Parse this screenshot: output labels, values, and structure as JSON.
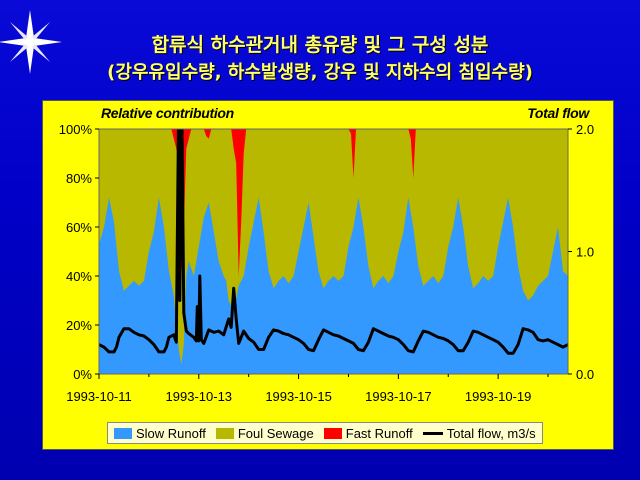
{
  "title_line1": "합류식 하수관거내 총유량 및 그 구성 성분",
  "title_line2": "(강우유입수량, 하수발생량, 강우 및 지하수의 침입수량)",
  "chart_data": {
    "type": "area",
    "left_axis_title": "Relative contribution",
    "right_axis_title": "Total flow",
    "y_left_ticks": [
      "0%",
      "20%",
      "40%",
      "60%",
      "80%",
      "100%"
    ],
    "y_left_range": [
      0,
      100
    ],
    "y_right_ticks": [
      "0.0",
      "1.0",
      "2.0"
    ],
    "y_right_range": [
      0,
      2.0
    ],
    "x_range_days": [
      0,
      9.4
    ],
    "x_start": "1993-10-11",
    "x_tick_labels": [
      "1993-10-11",
      "1993-10-13",
      "1993-10-15",
      "1993-10-17",
      "1993-10-19"
    ],
    "x_tick_days": [
      0,
      2,
      4,
      6,
      8
    ],
    "series": [
      {
        "name": "Slow Runoff",
        "color": "#3399ff",
        "kind": "stacked-area"
      },
      {
        "name": "Foul Sewage",
        "color": "#b8b800",
        "kind": "stacked-area"
      },
      {
        "name": "Fast Runoff",
        "color": "#ff0000",
        "kind": "stacked-area"
      },
      {
        "name": "Total flow, m3/s",
        "color": "#000000",
        "kind": "line",
        "axis": "right"
      }
    ],
    "slow_runoff_pct": [
      [
        0.0,
        53
      ],
      [
        0.1,
        60
      ],
      [
        0.2,
        72
      ],
      [
        0.3,
        62
      ],
      [
        0.4,
        42
      ],
      [
        0.5,
        34
      ],
      [
        0.6,
        36
      ],
      [
        0.7,
        38
      ],
      [
        0.8,
        36
      ],
      [
        0.9,
        38
      ],
      [
        1.0,
        50
      ],
      [
        1.1,
        58
      ],
      [
        1.2,
        72
      ],
      [
        1.3,
        60
      ],
      [
        1.4,
        42
      ],
      [
        1.5,
        32
      ],
      [
        1.55,
        20
      ],
      [
        1.6,
        10
      ],
      [
        1.65,
        4
      ],
      [
        1.7,
        12
      ],
      [
        1.75,
        40
      ],
      [
        1.8,
        46
      ],
      [
        1.9,
        40
      ],
      [
        2.0,
        52
      ],
      [
        2.1,
        64
      ],
      [
        2.2,
        70
      ],
      [
        2.3,
        58
      ],
      [
        2.4,
        46
      ],
      [
        2.5,
        40
      ],
      [
        2.55,
        38
      ],
      [
        2.6,
        30
      ],
      [
        2.7,
        26
      ],
      [
        2.8,
        36
      ],
      [
        2.9,
        40
      ],
      [
        3.0,
        52
      ],
      [
        3.1,
        62
      ],
      [
        3.2,
        72
      ],
      [
        3.3,
        58
      ],
      [
        3.4,
        42
      ],
      [
        3.5,
        35
      ],
      [
        3.6,
        38
      ],
      [
        3.7,
        40
      ],
      [
        3.8,
        37
      ],
      [
        3.9,
        40
      ],
      [
        4.0,
        50
      ],
      [
        4.1,
        60
      ],
      [
        4.2,
        70
      ],
      [
        4.3,
        56
      ],
      [
        4.4,
        42
      ],
      [
        4.5,
        35
      ],
      [
        4.6,
        38
      ],
      [
        4.7,
        40
      ],
      [
        4.8,
        38
      ],
      [
        4.9,
        40
      ],
      [
        5.0,
        52
      ],
      [
        5.1,
        60
      ],
      [
        5.2,
        72
      ],
      [
        5.3,
        60
      ],
      [
        5.4,
        44
      ],
      [
        5.5,
        35
      ],
      [
        5.6,
        38
      ],
      [
        5.7,
        40
      ],
      [
        5.8,
        37
      ],
      [
        5.9,
        40
      ],
      [
        6.0,
        50
      ],
      [
        6.1,
        58
      ],
      [
        6.2,
        72
      ],
      [
        6.3,
        60
      ],
      [
        6.4,
        44
      ],
      [
        6.5,
        36
      ],
      [
        6.6,
        38
      ],
      [
        6.7,
        40
      ],
      [
        6.8,
        37
      ],
      [
        6.9,
        40
      ],
      [
        7.0,
        52
      ],
      [
        7.1,
        60
      ],
      [
        7.2,
        72
      ],
      [
        7.3,
        60
      ],
      [
        7.4,
        44
      ],
      [
        7.5,
        35
      ],
      [
        7.6,
        37
      ],
      [
        7.7,
        40
      ],
      [
        7.8,
        38
      ],
      [
        7.9,
        40
      ],
      [
        8.0,
        52
      ],
      [
        8.1,
        62
      ],
      [
        8.2,
        72
      ],
      [
        8.3,
        60
      ],
      [
        8.4,
        44
      ],
      [
        8.5,
        34
      ],
      [
        8.6,
        30
      ],
      [
        8.7,
        32
      ],
      [
        8.8,
        36
      ],
      [
        8.9,
        38
      ],
      [
        9.0,
        40
      ],
      [
        9.1,
        50
      ],
      [
        9.2,
        60
      ],
      [
        9.3,
        42
      ],
      [
        9.4,
        40
      ]
    ],
    "foul_sewage_top_pct": [
      [
        0.0,
        100
      ],
      [
        1.45,
        100
      ],
      [
        1.5,
        96
      ],
      [
        1.55,
        92
      ],
      [
        1.6,
        86
      ],
      [
        1.65,
        40
      ],
      [
        1.7,
        60
      ],
      [
        1.75,
        92
      ],
      [
        1.8,
        96
      ],
      [
        1.85,
        100
      ],
      [
        2.1,
        100
      ],
      [
        2.15,
        97
      ],
      [
        2.2,
        96
      ],
      [
        2.25,
        100
      ],
      [
        2.65,
        100
      ],
      [
        2.7,
        92
      ],
      [
        2.75,
        86
      ],
      [
        2.8,
        40
      ],
      [
        2.85,
        62
      ],
      [
        2.9,
        90
      ],
      [
        2.95,
        100
      ],
      [
        5.0,
        100
      ],
      [
        5.05,
        98
      ],
      [
        5.1,
        80
      ],
      [
        5.15,
        100
      ],
      [
        6.2,
        100
      ],
      [
        6.25,
        96
      ],
      [
        6.3,
        80
      ],
      [
        6.35,
        100
      ],
      [
        9.4,
        100
      ]
    ],
    "total_flow_m3s": [
      [
        0.0,
        0.24
      ],
      [
        0.1,
        0.22
      ],
      [
        0.2,
        0.18
      ],
      [
        0.3,
        0.18
      ],
      [
        0.35,
        0.22
      ],
      [
        0.4,
        0.3
      ],
      [
        0.5,
        0.37
      ],
      [
        0.6,
        0.37
      ],
      [
        0.7,
        0.34
      ],
      [
        0.8,
        0.32
      ],
      [
        0.9,
        0.31
      ],
      [
        1.0,
        0.28
      ],
      [
        1.1,
        0.24
      ],
      [
        1.2,
        0.18
      ],
      [
        1.3,
        0.18
      ],
      [
        1.35,
        0.22
      ],
      [
        1.4,
        0.3
      ],
      [
        1.5,
        0.32
      ],
      [
        1.55,
        0.26
      ],
      [
        1.6,
        2.3
      ],
      [
        1.62,
        0.6
      ],
      [
        1.66,
        2.2
      ],
      [
        1.7,
        0.5
      ],
      [
        1.75,
        0.35
      ],
      [
        1.8,
        0.33
      ],
      [
        1.9,
        0.3
      ],
      [
        1.95,
        0.27
      ],
      [
        1.97,
        0.55
      ],
      [
        2.0,
        0.27
      ],
      [
        2.02,
        0.8
      ],
      [
        2.05,
        0.28
      ],
      [
        2.1,
        0.25
      ],
      [
        2.2,
        0.36
      ],
      [
        2.3,
        0.34
      ],
      [
        2.4,
        0.35
      ],
      [
        2.5,
        0.32
      ],
      [
        2.6,
        0.45
      ],
      [
        2.65,
        0.38
      ],
      [
        2.7,
        0.7
      ],
      [
        2.75,
        0.45
      ],
      [
        2.8,
        0.25
      ],
      [
        2.9,
        0.35
      ],
      [
        3.0,
        0.29
      ],
      [
        3.1,
        0.26
      ],
      [
        3.2,
        0.2
      ],
      [
        3.3,
        0.2
      ],
      [
        3.4,
        0.3
      ],
      [
        3.5,
        0.36
      ],
      [
        3.6,
        0.35
      ],
      [
        3.7,
        0.33
      ],
      [
        3.8,
        0.32
      ],
      [
        3.9,
        0.3
      ],
      [
        4.0,
        0.28
      ],
      [
        4.1,
        0.25
      ],
      [
        4.2,
        0.2
      ],
      [
        4.3,
        0.19
      ],
      [
        4.4,
        0.28
      ],
      [
        4.5,
        0.36
      ],
      [
        4.6,
        0.34
      ],
      [
        4.7,
        0.32
      ],
      [
        4.8,
        0.31
      ],
      [
        4.9,
        0.29
      ],
      [
        5.0,
        0.27
      ],
      [
        5.1,
        0.25
      ],
      [
        5.2,
        0.2
      ],
      [
        5.3,
        0.19
      ],
      [
        5.4,
        0.26
      ],
      [
        5.5,
        0.37
      ],
      [
        5.6,
        0.35
      ],
      [
        5.7,
        0.33
      ],
      [
        5.8,
        0.31
      ],
      [
        5.9,
        0.3
      ],
      [
        6.0,
        0.28
      ],
      [
        6.1,
        0.24
      ],
      [
        6.2,
        0.19
      ],
      [
        6.3,
        0.18
      ],
      [
        6.4,
        0.27
      ],
      [
        6.5,
        0.35
      ],
      [
        6.6,
        0.34
      ],
      [
        6.7,
        0.32
      ],
      [
        6.8,
        0.3
      ],
      [
        6.9,
        0.29
      ],
      [
        7.0,
        0.27
      ],
      [
        7.1,
        0.24
      ],
      [
        7.2,
        0.19
      ],
      [
        7.3,
        0.19
      ],
      [
        7.4,
        0.26
      ],
      [
        7.5,
        0.35
      ],
      [
        7.6,
        0.34
      ],
      [
        7.7,
        0.32
      ],
      [
        7.8,
        0.3
      ],
      [
        7.9,
        0.28
      ],
      [
        8.0,
        0.26
      ],
      [
        8.1,
        0.22
      ],
      [
        8.2,
        0.17
      ],
      [
        8.3,
        0.17
      ],
      [
        8.4,
        0.24
      ],
      [
        8.5,
        0.37
      ],
      [
        8.6,
        0.36
      ],
      [
        8.7,
        0.34
      ],
      [
        8.8,
        0.28
      ],
      [
        8.9,
        0.27
      ],
      [
        9.0,
        0.28
      ],
      [
        9.1,
        0.26
      ],
      [
        9.2,
        0.24
      ],
      [
        9.3,
        0.22
      ],
      [
        9.4,
        0.24
      ]
    ],
    "legend_position": "bottom",
    "grid": false
  }
}
